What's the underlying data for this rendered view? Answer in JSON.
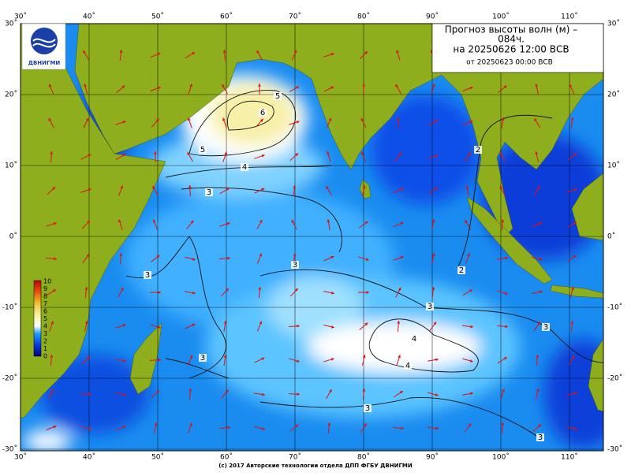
{
  "header": {
    "title_lines": [
      "Прогноз высоты волн (м) –",
      "084ч.",
      "на 20250626 12:00 ВСВ"
    ],
    "issued": "от 20250623 00:00 ВСВ"
  },
  "logo": {
    "text": "ДВНИГМИ"
  },
  "map": {
    "lon_labels": [
      "30˚",
      "40˚",
      "50˚",
      "60˚",
      "70˚",
      "80˚",
      "90˚",
      "100˚",
      "110˚"
    ],
    "lat_labels": [
      "30˚",
      "20˚",
      "10˚",
      "0˚",
      "-10˚",
      "-20˚",
      "-30˚"
    ]
  },
  "legend": {
    "labels": [
      "10",
      "9",
      "8",
      "7",
      "6",
      "5",
      "4",
      "3",
      "2",
      "1",
      "0"
    ]
  },
  "contour_labels": [
    "5",
    "6",
    "5",
    "4",
    "3",
    "3",
    "3",
    "2",
    "2",
    "3",
    "4",
    "4",
    "3",
    "3",
    "3",
    "3"
  ],
  "footer": "(c) 2017 Авторские технологии отдела ДПП ФГБУ ДВНИГМИ"
}
